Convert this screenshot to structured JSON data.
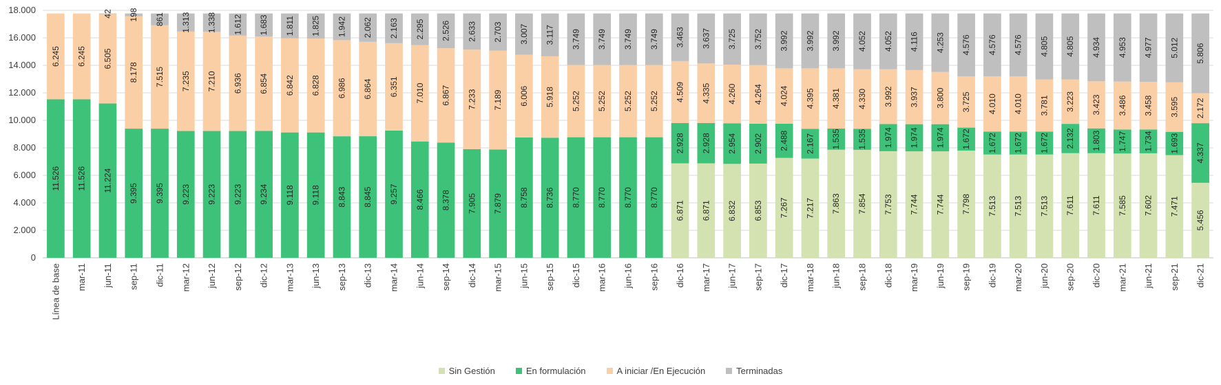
{
  "chart_data": {
    "type": "bar",
    "stacked": true,
    "ylim": [
      0,
      18000
    ],
    "yticks": [
      "0",
      "2.000",
      "4.000",
      "6.000",
      "8.000",
      "10.000",
      "12.000",
      "14.000",
      "16.000",
      "18.000"
    ],
    "grid": true,
    "legend_position": "bottom",
    "categories": [
      "Línea de base",
      "mar-11",
      "jun-11",
      "sep-11",
      "dic-11",
      "mar-12",
      "jun-12",
      "sep-12",
      "dic-12",
      "mar-13",
      "jun-13",
      "sep-13",
      "dic-13",
      "mar-14",
      "jun-14",
      "sep-14",
      "dic-14",
      "mar-15",
      "jun-15",
      "sep-15",
      "dic-15",
      "mar-16",
      "jun-16",
      "sep-16",
      "dic-16",
      "mar-17",
      "jun-17",
      "sep-17",
      "dic-17",
      "mar-18",
      "jun-18",
      "sep-18",
      "dic-18",
      "mar-19",
      "jun-19",
      "sep-19",
      "dic-19",
      "mar-20",
      "jun-20",
      "sep-20",
      "dic-20",
      "mar-21",
      "jun-21",
      "sep-21",
      "dic-21"
    ],
    "series": [
      {
        "name": "Sin Gestión",
        "color": "#d4e1b0",
        "values": [
          0,
          0,
          0,
          0,
          0,
          0,
          0,
          0,
          0,
          0,
          0,
          0,
          0,
          0,
          0,
          0,
          0,
          0,
          0,
          0,
          0,
          0,
          0,
          0,
          6871,
          6871,
          6832,
          6853,
          7267,
          7217,
          7863,
          7854,
          7753,
          7744,
          7744,
          7798,
          7513,
          7513,
          7513,
          7611,
          7611,
          7585,
          7602,
          7471,
          5456
        ],
        "labels": [
          "",
          "",
          "",
          "",
          "",
          "",
          "",
          "",
          "",
          "",
          "",
          "",
          "",
          "",
          "",
          "",
          "",
          "",
          "",
          "",
          "",
          "",
          "",
          "",
          "6.871",
          "6.871",
          "6.832",
          "6.853",
          "7.267",
          "7.217",
          "7.863",
          "7.854",
          "7.753",
          "7.744",
          "7.744",
          "7.798",
          "7.513",
          "7.513",
          "7.513",
          "7.611",
          "7.611",
          "7.585",
          "7.602",
          "7.471",
          "5.456"
        ]
      },
      {
        "name": "En formulación",
        "color": "#3ec27a",
        "values": [
          11526,
          11526,
          11224,
          9395,
          9395,
          9223,
          9223,
          9223,
          9234,
          9118,
          9118,
          8843,
          8845,
          9257,
          8466,
          8378,
          7905,
          7879,
          8758,
          8736,
          8770,
          8770,
          8770,
          8770,
          2928,
          2928,
          2954,
          2902,
          2488,
          2167,
          1535,
          1535,
          1974,
          1974,
          1974,
          1672,
          1672,
          1672,
          1672,
          2132,
          1803,
          1747,
          1734,
          1693,
          4337
        ],
        "labels": [
          "11.526",
          "11.526",
          "11.224",
          "9.395",
          "9.395",
          "9.223",
          "9.223",
          "9.223",
          "9.234",
          "9.118",
          "9.118",
          "8.843",
          "8.845",
          "9.257",
          "8.466",
          "8.378",
          "7.905",
          "7.879",
          "8.758",
          "8.736",
          "8.770",
          "8.770",
          "8.770",
          "8.770",
          "2.928",
          "2.928",
          "2.954",
          "2.902",
          "2.488",
          "2.167",
          "1.535",
          "1.535",
          "1.974",
          "1.974",
          "1.974",
          "1.672",
          "1.672",
          "1.672",
          "1.672",
          "2.132",
          "1.803",
          "1.747",
          "1.734",
          "1.693",
          "4.337"
        ]
      },
      {
        "name": "A iniciar /En Ejecución",
        "color": "#fbcfa6",
        "values": [
          6245,
          6245,
          6505,
          8178,
          7515,
          7235,
          7210,
          6936,
          6854,
          6842,
          6828,
          6986,
          6864,
          6351,
          7010,
          6867,
          7233,
          7189,
          6006,
          5918,
          5252,
          5252,
          5252,
          5252,
          4509,
          4335,
          4260,
          4264,
          4024,
          4395,
          4381,
          4330,
          3992,
          3937,
          3800,
          3725,
          4010,
          4010,
          3781,
          3223,
          3423,
          3486,
          3458,
          3595,
          2172
        ],
        "labels": [
          "6.245",
          "6.245",
          "6.505",
          "8.178",
          "7.515",
          "7.235",
          "7.210",
          "6.936",
          "6.854",
          "6.842",
          "6.828",
          "6.986",
          "6.864",
          "6.351",
          "7.010",
          "6.867",
          "7.233",
          "7.189",
          "6.006",
          "5.918",
          "5.252",
          "5.252",
          "5.252",
          "5.252",
          "4.509",
          "4.335",
          "4.260",
          "4.264",
          "4.024",
          "4.395",
          "4.381",
          "4.330",
          "3.992",
          "3.937",
          "3.800",
          "3.725",
          "4.010",
          "4.010",
          "3.781",
          "3.223",
          "3.423",
          "3.486",
          "3.458",
          "3.595",
          "2.172"
        ]
      },
      {
        "name": "Terminadas",
        "color": "#bfbfbf",
        "values": [
          0,
          0,
          42,
          198,
          861,
          1313,
          1338,
          1612,
          1683,
          1811,
          1825,
          1942,
          2062,
          2163,
          2295,
          2526,
          2633,
          2703,
          3007,
          3117,
          3749,
          3749,
          3749,
          3749,
          3463,
          3637,
          3725,
          3752,
          3992,
          3992,
          3992,
          4052,
          4052,
          4116,
          4253,
          4576,
          4576,
          4576,
          4805,
          4805,
          4934,
          4953,
          4977,
          5012,
          5806
        ],
        "labels": [
          "",
          "",
          "42",
          "198",
          "861",
          "1.313",
          "1.338",
          "1.612",
          "1.683",
          "1.811",
          "1.825",
          "1.942",
          "2.062",
          "2.163",
          "2.295",
          "2.526",
          "2.633",
          "2.703",
          "3.007",
          "3.117",
          "3.749",
          "3.749",
          "3.749",
          "3.749",
          "3.463",
          "3.637",
          "3.725",
          "3.752",
          "3.992",
          "3.992",
          "3.992",
          "4.052",
          "4.052",
          "4.116",
          "4.253",
          "4.576",
          "4.576",
          "4.576",
          "4.805",
          "4.805",
          "4.934",
          "4.953",
          "4.977",
          "5.012",
          "5.806"
        ]
      }
    ]
  }
}
